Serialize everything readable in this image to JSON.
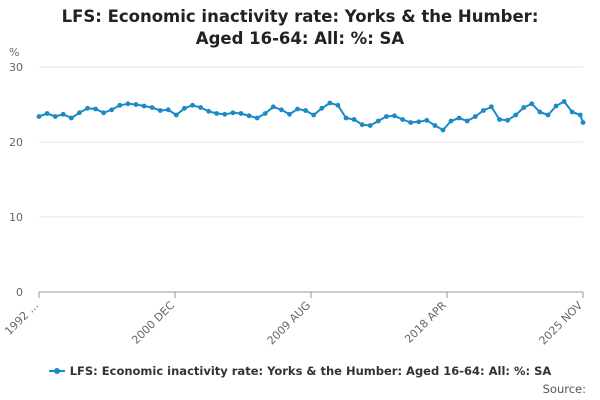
{
  "chart_data": {
    "type": "line",
    "title": "LFS: Economic inactivity rate: Yorks & the Humber: Aged 16-64: All: %: SA",
    "y_unit": "%",
    "ylim": [
      0,
      30
    ],
    "y_ticks": [
      0,
      10,
      20,
      30
    ],
    "x_range": [
      "1992 MAR",
      "2025 NOV"
    ],
    "x_ticks": [
      "1992 ...",
      "2000 DEC",
      "2009 AUG",
      "2018 APR",
      "2025 NOV"
    ],
    "grid": true,
    "legend": "bottom",
    "source_label": "Source:",
    "series": [
      {
        "name": "LFS: Economic inactivity rate: Yorks & the Humber: Aged 16-64: All: %: SA",
        "color": "#1b8ac7",
        "points": [
          [
            "1992-03",
            23.4
          ],
          [
            "1992-09",
            23.8
          ],
          [
            "1993-03",
            23.4
          ],
          [
            "1993-09",
            23.7
          ],
          [
            "1994-03",
            23.2
          ],
          [
            "1994-09",
            23.9
          ],
          [
            "1995-03",
            24.5
          ],
          [
            "1995-09",
            24.4
          ],
          [
            "1996-03",
            23.9
          ],
          [
            "1996-09",
            24.3
          ],
          [
            "1997-03",
            24.9
          ],
          [
            "1997-09",
            25.1
          ],
          [
            "1998-03",
            25.0
          ],
          [
            "1998-09",
            24.8
          ],
          [
            "1999-03",
            24.6
          ],
          [
            "1999-09",
            24.2
          ],
          [
            "2000-03",
            24.3
          ],
          [
            "2000-09",
            23.6
          ],
          [
            "2001-03",
            24.5
          ],
          [
            "2001-09",
            24.9
          ],
          [
            "2002-03",
            24.6
          ],
          [
            "2002-09",
            24.1
          ],
          [
            "2003-03",
            23.8
          ],
          [
            "2003-09",
            23.7
          ],
          [
            "2004-03",
            23.9
          ],
          [
            "2004-09",
            23.8
          ],
          [
            "2005-03",
            23.5
          ],
          [
            "2005-09",
            23.2
          ],
          [
            "2006-03",
            23.8
          ],
          [
            "2006-09",
            24.7
          ],
          [
            "2007-03",
            24.3
          ],
          [
            "2007-09",
            23.7
          ],
          [
            "2008-03",
            24.4
          ],
          [
            "2008-09",
            24.2
          ],
          [
            "2009-03",
            23.6
          ],
          [
            "2009-09",
            24.5
          ],
          [
            "2010-03",
            25.2
          ],
          [
            "2010-09",
            24.9
          ],
          [
            "2011-03",
            23.2
          ],
          [
            "2011-09",
            23.0
          ],
          [
            "2012-03",
            22.3
          ],
          [
            "2012-09",
            22.2
          ],
          [
            "2013-03",
            22.8
          ],
          [
            "2013-09",
            23.4
          ],
          [
            "2014-03",
            23.5
          ],
          [
            "2014-09",
            23.0
          ],
          [
            "2015-03",
            22.6
          ],
          [
            "2015-09",
            22.7
          ],
          [
            "2016-03",
            22.9
          ],
          [
            "2016-09",
            22.2
          ],
          [
            "2017-03",
            21.6
          ],
          [
            "2017-09",
            22.8
          ],
          [
            "2018-03",
            23.2
          ],
          [
            "2018-09",
            22.8
          ],
          [
            "2019-03",
            23.4
          ],
          [
            "2019-09",
            24.2
          ],
          [
            "2020-03",
            24.7
          ],
          [
            "2020-09",
            23.0
          ],
          [
            "2021-03",
            22.9
          ],
          [
            "2021-09",
            23.6
          ],
          [
            "2022-03",
            24.6
          ],
          [
            "2022-09",
            25.1
          ],
          [
            "2023-03",
            24.0
          ],
          [
            "2023-09",
            23.6
          ],
          [
            "2024-03",
            24.8
          ],
          [
            "2024-09",
            25.4
          ],
          [
            "2025-03",
            24.0
          ],
          [
            "2025-09",
            23.6
          ],
          [
            "2025-11",
            22.6
          ]
        ]
      }
    ]
  }
}
